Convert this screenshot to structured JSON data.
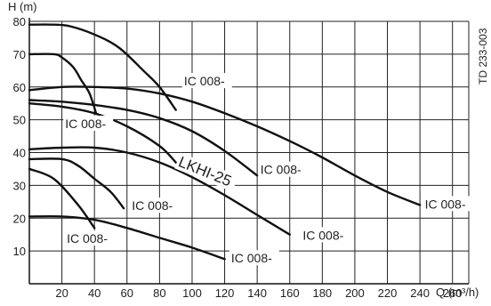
{
  "chart_data": {
    "type": "line",
    "title": "",
    "xlabel": "Q (m³/h)",
    "ylabel": "H (m)",
    "side_code": "TD 233-003",
    "xlim": [
      0,
      270
    ],
    "ylim": [
      0,
      80
    ],
    "x_ticks": [
      20,
      40,
      60,
      80,
      100,
      120,
      140,
      160,
      180,
      200,
      220,
      240,
      260
    ],
    "y_ticks": [
      10,
      20,
      30,
      40,
      50,
      60,
      70,
      80
    ],
    "grid": true,
    "series": [
      {
        "x": [
          0,
          15,
          25,
          40,
          55,
          70,
          80,
          90
        ],
        "y": [
          79,
          79,
          78.5,
          76,
          72,
          65,
          60,
          53
        ]
      },
      {
        "x": [
          0,
          15,
          20,
          27,
          32,
          37,
          41
        ],
        "y": [
          70,
          70,
          69,
          66,
          62,
          58,
          52
        ]
      },
      {
        "x": [
          0,
          20,
          40,
          60,
          80,
          100,
          120,
          140,
          160,
          180,
          200,
          220,
          240
        ],
        "y": [
          59,
          60,
          60,
          59.5,
          58,
          55.5,
          52,
          48,
          43.5,
          38.5,
          33,
          28,
          24
        ]
      },
      {
        "x": [
          0,
          20,
          40,
          60,
          80,
          100,
          120,
          140
        ],
        "y": [
          56,
          55.5,
          54.5,
          53,
          50.5,
          46.5,
          40.5,
          33
        ]
      },
      {
        "x": [
          0,
          20,
          40,
          60,
          80,
          90
        ],
        "y": [
          55,
          54,
          52,
          48,
          42,
          37
        ]
      },
      {
        "x": [
          0,
          20,
          40,
          60,
          80,
          100,
          120,
          140,
          160
        ],
        "y": [
          41,
          41.5,
          41.5,
          40,
          37,
          32.5,
          27,
          21,
          15
        ]
      },
      {
        "x": [
          0,
          20,
          30,
          40,
          50,
          58
        ],
        "y": [
          38,
          38,
          36,
          32,
          28,
          23
        ]
      },
      {
        "x": [
          0,
          15,
          30,
          40
        ],
        "y": [
          35,
          32,
          24,
          17
        ]
      },
      {
        "x": [
          0,
          20,
          40,
          60,
          80,
          100,
          120
        ],
        "y": [
          20.5,
          20.5,
          19.5,
          17,
          14,
          11,
          7.5
        ]
      }
    ],
    "curve_labels": [
      {
        "text": "IC 008-",
        "x": 95,
        "y": 61
      },
      {
        "text": "IC 008-",
        "x": 22,
        "y": 48
      },
      {
        "text": "IC 008-",
        "x": 142,
        "y": 34
      },
      {
        "text": "IC 008-",
        "x": 243,
        "y": 23.5
      },
      {
        "text": "IC 008-",
        "x": 63,
        "y": 23
      },
      {
        "text": "IC 008-",
        "x": 168,
        "y": 14
      },
      {
        "text": "IC 008-",
        "x": 23,
        "y": 13
      },
      {
        "text": "IC 008-",
        "x": 124,
        "y": 7
      }
    ],
    "series_label": {
      "text": "LKHI-25",
      "x": 91,
      "y": 36,
      "angle": 22
    }
  }
}
